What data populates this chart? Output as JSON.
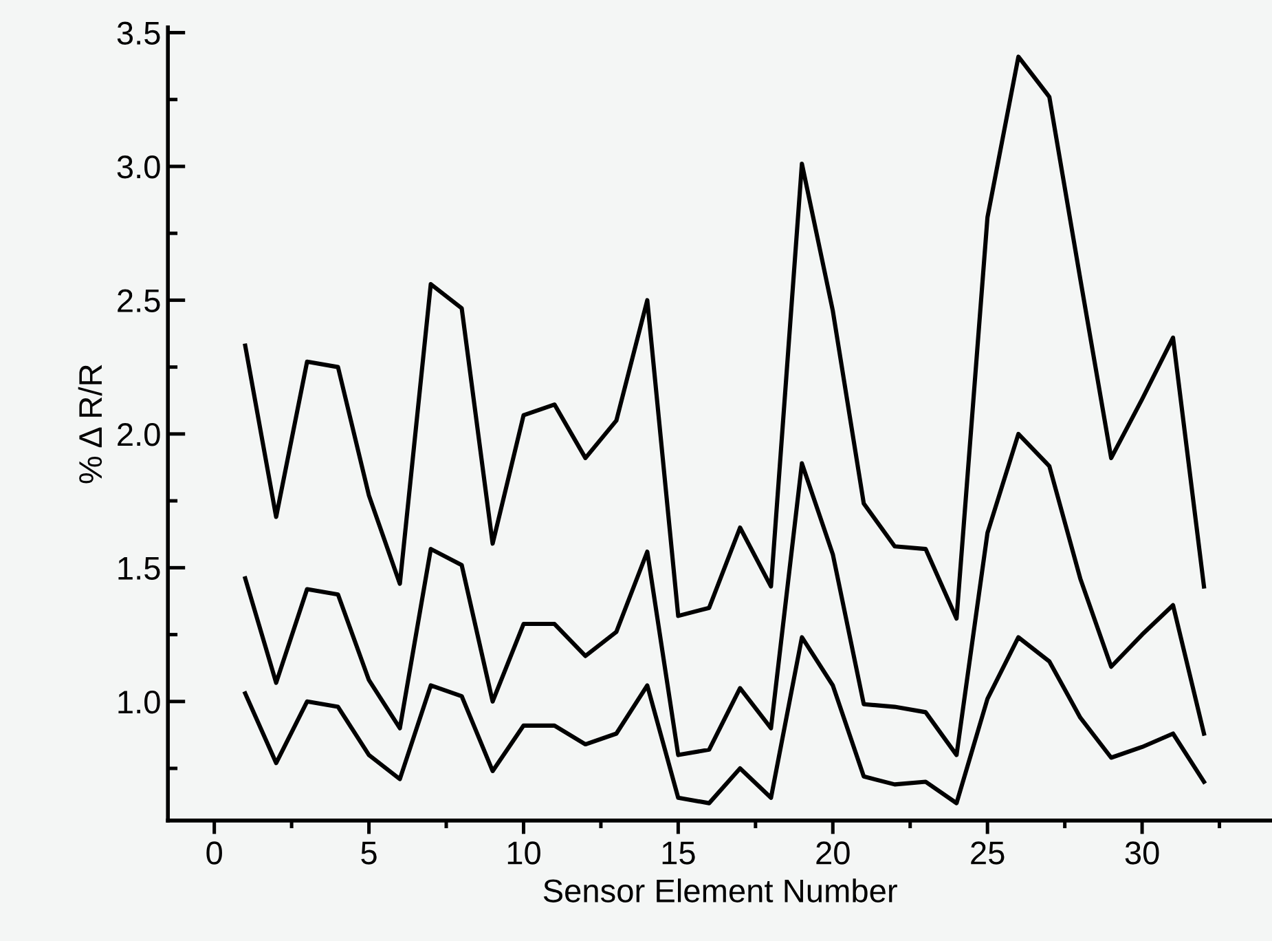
{
  "chart_data": {
    "type": "line",
    "xlabel": "Sensor Element Number",
    "ylabel": "% Δ R/R",
    "x": [
      1,
      2,
      3,
      4,
      5,
      6,
      7,
      8,
      9,
      10,
      11,
      12,
      13,
      14,
      15,
      16,
      17,
      18,
      19,
      20,
      21,
      22,
      23,
      24,
      25,
      26,
      27,
      28,
      29,
      30,
      31,
      32
    ],
    "series": [
      {
        "color": "#000000",
        "values": [
          2.33,
          1.69,
          2.27,
          2.25,
          1.77,
          1.44,
          2.56,
          2.47,
          1.59,
          2.07,
          2.11,
          1.91,
          2.05,
          2.5,
          1.32,
          1.35,
          1.65,
          1.43,
          3.01,
          2.46,
          1.74,
          1.58,
          1.57,
          1.31,
          2.81,
          3.41,
          3.26,
          2.58,
          1.91,
          2.13,
          2.36,
          1.43
        ]
      },
      {
        "color": "#000000",
        "values": [
          1.46,
          1.07,
          1.42,
          1.4,
          1.08,
          0.9,
          1.57,
          1.51,
          1.0,
          1.29,
          1.29,
          1.17,
          1.26,
          1.56,
          0.8,
          0.82,
          1.05,
          0.9,
          1.89,
          1.55,
          0.99,
          0.98,
          0.96,
          0.8,
          1.63,
          2.0,
          1.88,
          1.46,
          1.13,
          1.25,
          1.36,
          0.88
        ]
      },
      {
        "color": "#000000",
        "values": [
          1.03,
          0.77,
          1.0,
          0.98,
          0.8,
          0.71,
          1.06,
          1.02,
          0.74,
          0.91,
          0.91,
          0.84,
          0.88,
          1.06,
          0.64,
          0.62,
          0.75,
          0.64,
          1.24,
          1.06,
          0.72,
          0.69,
          0.7,
          0.62,
          1.01,
          1.24,
          1.15,
          0.94,
          0.79,
          0.83,
          0.88,
          0.7
        ]
      }
    ],
    "xlim": [
      -1.5,
      34.2
    ],
    "ylim": [
      0.555,
      3.52
    ],
    "xticks": [
      0,
      {
        "value": 2.5,
        "label": null
      },
      5,
      {
        "value": 7.5,
        "label": null
      },
      10,
      {
        "value": 12.5,
        "label": null
      },
      15,
      {
        "value": 17.5,
        "label": null
      },
      20,
      {
        "value": 22.5,
        "label": null
      },
      25,
      {
        "value": 27.5,
        "label": null
      },
      30,
      {
        "value": 32.5,
        "label": null
      }
    ],
    "yticks": [
      {
        "value": 0.75,
        "label": null
      },
      {
        "value": 1.0,
        "label": "1.0"
      },
      {
        "value": 1.25,
        "label": null
      },
      1.5,
      {
        "value": 1.75,
        "label": null
      },
      {
        "value": 2.0,
        "label": "2.0"
      },
      {
        "value": 2.25,
        "label": null
      },
      2.5,
      {
        "value": 2.75,
        "label": null
      },
      {
        "value": 3.0,
        "label": "3.0"
      },
      {
        "value": 3.25,
        "label": null
      },
      3.5
    ],
    "grid": false,
    "legend": false,
    "marker": "none",
    "line_style": "solid"
  }
}
